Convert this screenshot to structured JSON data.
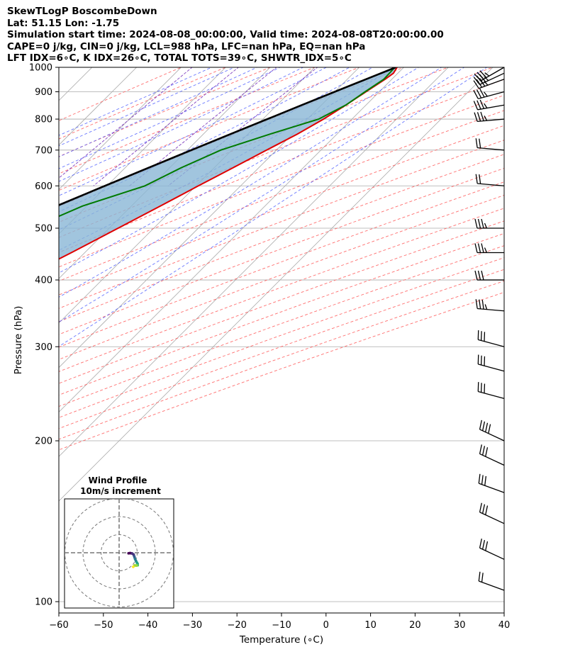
{
  "header": {
    "title": "SkewTLogP BoscombeDown",
    "location": "Lat: 51.15   Lon: -1.75",
    "times": "Simulation start time: 2024-08-08_00:00:00, Valid time: 2024-08-08T20:00:00.00",
    "params": "CAPE=0 j/kg, CIN=0 j/kg, LCL=988 hPa, LFC=nan hPa, EQ=nan hPa",
    "indices": "LFT IDX=6∘C, K IDX=26∘C, TOTAL TOTS=39∘C, SHWTR_IDX=5∘C"
  },
  "colors": {
    "temperature": "#e00000",
    "dewpoint": "#007a00",
    "parcel": "#000000",
    "cape_fill": "#8ab6d6",
    "dry_adiabat": "#ff5555",
    "moist_adiabat": "#4f5fff",
    "mixing_ratio": "#8040c0",
    "isotherm": "#aaaaaa"
  },
  "chart_data": [
    {
      "type": "line",
      "title": "",
      "xlabel": "Temperature (∘C)",
      "ylabel": "Pressure (hPa)",
      "xlim": [
        -60,
        40
      ],
      "ylim": [
        1050,
        100
      ],
      "yscale": "log",
      "skew": "isotherms at 45 degrees",
      "grid": true,
      "xticks": [
        -60,
        -50,
        -40,
        -30,
        -20,
        -10,
        0,
        10,
        20,
        30,
        40
      ],
      "yticks": [
        1000,
        900,
        800,
        700,
        600,
        500,
        400,
        300,
        200,
        100
      ],
      "series": [
        {
          "role": "temperature",
          "points": [
            [
              1000,
              18.5
            ],
            [
              975,
              19.0
            ],
            [
              950,
              18.5
            ],
            [
              900,
              17.0
            ],
            [
              850,
              15.5
            ],
            [
              800,
              13.6
            ],
            [
              750,
              11.1
            ],
            [
              700,
              7.8
            ],
            [
              650,
              4.3
            ],
            [
              600,
              0.5
            ],
            [
              550,
              -3.5
            ],
            [
              500,
              -8
            ],
            [
              450,
              -13
            ],
            [
              400,
              -19
            ],
            [
              350,
              -26
            ],
            [
              300,
              -34
            ],
            [
              250,
              -45
            ],
            [
              200,
              -58
            ],
            [
              180,
              -60
            ],
            [
              160,
              -62
            ],
            [
              140,
              -62
            ],
            [
              120,
              -64
            ],
            [
              100,
              -66
            ]
          ]
        },
        {
          "role": "dewpoint",
          "points": [
            [
              1000,
              18.0
            ],
            [
              950,
              18.2
            ],
            [
              900,
              16.8
            ],
            [
              850,
              15.5
            ],
            [
              800,
              12.5
            ],
            [
              750,
              5.0
            ],
            [
              700,
              -2.5
            ],
            [
              650,
              -7.3
            ],
            [
              600,
              -11.5
            ],
            [
              550,
              -21
            ],
            [
              500,
              -27.5
            ],
            [
              450,
              -25
            ],
            [
              400,
              -23
            ],
            [
              350,
              -30
            ],
            [
              300,
              -42
            ],
            [
              280,
              -42
            ],
            [
              250,
              -45
            ],
            [
              220,
              -57
            ],
            [
              200,
              -64
            ],
            [
              170,
              -73
            ],
            [
              150,
              -82
            ],
            [
              140,
              -86
            ],
            [
              100,
              -88
            ]
          ]
        },
        {
          "role": "parcel",
          "points": [
            [
              1000,
              18.2
            ],
            [
              950,
              14.2
            ],
            [
              900,
              10.0
            ],
            [
              850,
              5.6
            ],
            [
              800,
              1.0
            ],
            [
              750,
              -3.9
            ],
            [
              700,
              -9.1
            ],
            [
              650,
              -14.6
            ],
            [
              600,
              -20.5
            ],
            [
              550,
              -26.8
            ],
            [
              500,
              -33.6
            ],
            [
              450,
              -41.1
            ],
            [
              400,
              -49.3
            ],
            [
              350,
              -58.4
            ],
            [
              300,
              -68.7
            ],
            [
              250,
              -80.6
            ],
            [
              200,
              -94.7
            ],
            [
              150,
              -112
            ],
            [
              125,
              -123
            ],
            [
              100,
              -136
            ]
          ]
        }
      ]
    },
    {
      "type": "scatter",
      "title": "Wind Profile",
      "subtitle": "10m/s increment",
      "grid": "range rings",
      "points": [
        [
          5.2,
          -0.3
        ],
        [
          6.1,
          -0.2
        ],
        [
          7.2,
          -0.4
        ],
        [
          8.0,
          -1.0
        ],
        [
          8.4,
          -2.1
        ],
        [
          8.8,
          -3.4
        ],
        [
          9.3,
          -4.5
        ],
        [
          9.8,
          -5.4
        ],
        [
          10.2,
          -6.1
        ],
        [
          10.3,
          -6.9
        ],
        [
          9.6,
          -7.1
        ],
        [
          8.6,
          -7.0
        ],
        [
          7.8,
          -7.8
        ]
      ]
    }
  ],
  "wind_barbs": [
    {
      "p": 1000,
      "speed": 25,
      "dir": 240
    },
    {
      "p": 975,
      "speed": 25,
      "dir": 245
    },
    {
      "p": 950,
      "speed": 25,
      "dir": 250
    },
    {
      "p": 900,
      "speed": 25,
      "dir": 255
    },
    {
      "p": 850,
      "speed": 25,
      "dir": 260
    },
    {
      "p": 800,
      "speed": 25,
      "dir": 265
    },
    {
      "p": 700,
      "speed": 20,
      "dir": 275
    },
    {
      "p": 600,
      "speed": 20,
      "dir": 275
    },
    {
      "p": 500,
      "speed": 25,
      "dir": 270
    },
    {
      "p": 450,
      "speed": 25,
      "dir": 270
    },
    {
      "p": 400,
      "speed": 30,
      "dir": 270
    },
    {
      "p": 350,
      "speed": 25,
      "dir": 275
    },
    {
      "p": 300,
      "speed": 30,
      "dir": 285
    },
    {
      "p": 270,
      "speed": 30,
      "dir": 285
    },
    {
      "p": 240,
      "speed": 30,
      "dir": 285
    },
    {
      "p": 200,
      "speed": 40,
      "dir": 295
    },
    {
      "p": 180,
      "speed": 30,
      "dir": 295
    },
    {
      "p": 160,
      "speed": 30,
      "dir": 290
    },
    {
      "p": 140,
      "speed": 30,
      "dir": 295
    },
    {
      "p": 120,
      "speed": 30,
      "dir": 295
    },
    {
      "p": 105,
      "speed": 20,
      "dir": 290
    }
  ]
}
